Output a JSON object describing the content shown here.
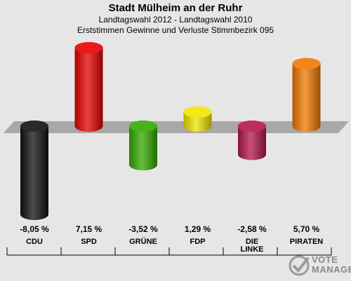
{
  "header": {
    "title": "Stadt Mülheim an der Ruhr",
    "subtitle1": "Landtagswahl 2012 - Landtagswahl 2010",
    "subtitle2": "Erststimmen Gewinne und Verluste Stimmbezirk 095"
  },
  "chart_data": {
    "type": "bar",
    "title": "Stadt Mülheim an der Ruhr",
    "subtitle": "Landtagswahl 2012 - Landtagswahl 2010 / Erststimmen Gewinne und Verluste Stimmbezirk 095",
    "categories": [
      "CDU",
      "SPD",
      "GRÜNE",
      "FDP",
      "DIE LINKE",
      "PIRATEN"
    ],
    "values": [
      -8.05,
      7.15,
      -3.52,
      1.29,
      -2.58,
      5.7
    ],
    "value_labels": [
      "-8,05 %",
      "7,15 %",
      "-3,52 %",
      "1,29 %",
      "-2,58 %",
      "5,70 %"
    ],
    "colors": [
      "#111111",
      "#e60000",
      "#33aa00",
      "#f2e600",
      "#b3164d",
      "#f07800"
    ],
    "ylim": [
      -8.05,
      7.15
    ]
  },
  "logo": {
    "line1": "VOTE",
    "line2": "MANAGER"
  }
}
